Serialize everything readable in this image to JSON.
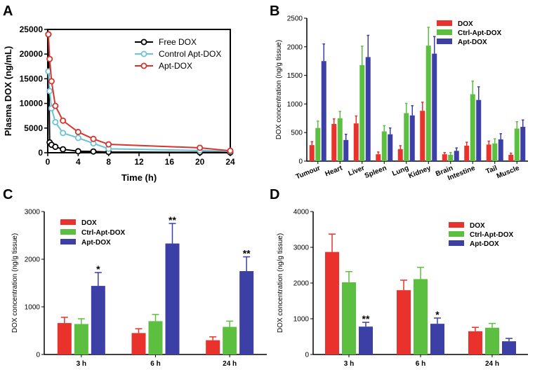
{
  "colors": {
    "DOX": "#e8322b",
    "Ctrl-Apt-DOX": "#5cbf3f",
    "Apt-DOX": "#3c3fa6",
    "Free DOX": "#000000",
    "Control Apt-DOX": "#6cc3d8",
    "Apt-DOX line": "#d9342b"
  },
  "chart_data": [
    {
      "panel": "A",
      "type": "line",
      "xlabel": "Time (h)",
      "ylabel": "Plasma DOX (ng/mL)",
      "xlim": [
        0,
        24
      ],
      "ylim": [
        0,
        25000
      ],
      "xticks": [
        "0",
        "4",
        "8",
        "12",
        "16",
        "20",
        "24"
      ],
      "yticks": [
        "0",
        "5000",
        "10000",
        "15000",
        "20000",
        "25000"
      ],
      "legend": [
        "Free DOX",
        "Control Apt-DOX",
        "Apt-DOX"
      ],
      "series": [
        {
          "name": "Free DOX",
          "color": "#000000",
          "x": [
            0.083,
            0.25,
            0.5,
            1,
            2,
            4,
            6,
            8,
            20,
            24
          ],
          "y": [
            24000,
            2100,
            1600,
            1200,
            700,
            300,
            250,
            150,
            80,
            60
          ]
        },
        {
          "name": "Control Apt-DOX",
          "color": "#6cc3d8",
          "x": [
            0.083,
            0.25,
            0.5,
            1,
            2,
            4,
            6,
            8,
            20,
            24
          ],
          "y": [
            16500,
            12500,
            9000,
            6200,
            4000,
            3000,
            1900,
            800,
            450,
            300
          ]
        },
        {
          "name": "Apt-DOX",
          "color": "#d9342b",
          "x": [
            0.083,
            0.25,
            0.5,
            1,
            2,
            4,
            6,
            8,
            20,
            24
          ],
          "y": [
            24000,
            19000,
            14500,
            9500,
            6500,
            4200,
            2800,
            1700,
            1000,
            400
          ]
        }
      ]
    },
    {
      "panel": "B",
      "type": "bar",
      "ylabel": "DOX concentration (ng/g tissue)",
      "ylim": [
        0,
        2500
      ],
      "yticks": [
        "0",
        "500",
        "1000",
        "1500",
        "2000",
        "2500"
      ],
      "categories": [
        "Tumour",
        "Heart",
        "Liver",
        "Spleen",
        "Lung",
        "Kidney",
        "Brain",
        "Intestine",
        "Tail",
        "Muscle"
      ],
      "legend": [
        "DOX",
        "Ctrl-Apt-DOX",
        "Apt-DOX"
      ],
      "series": [
        {
          "name": "DOX",
          "values": [
            280,
            650,
            660,
            120,
            210,
            880,
            120,
            270,
            290,
            110
          ],
          "errors": [
            60,
            90,
            130,
            40,
            60,
            150,
            30,
            60,
            60,
            30
          ]
        },
        {
          "name": "Ctrl-Apt-DOX",
          "values": [
            580,
            750,
            1680,
            520,
            840,
            2020,
            110,
            1170,
            310,
            570
          ],
          "errors": [
            120,
            120,
            330,
            100,
            170,
            320,
            40,
            230,
            80,
            120
          ]
        },
        {
          "name": "Apt-DOX",
          "values": [
            1750,
            370,
            1820,
            470,
            800,
            1880,
            180,
            1070,
            380,
            600
          ],
          "errors": [
            300,
            100,
            380,
            110,
            170,
            300,
            50,
            230,
            100,
            120
          ]
        }
      ]
    },
    {
      "panel": "C",
      "type": "bar",
      "ylabel": "DOX concentration (ng/g tissue)",
      "ylim": [
        0,
        3000
      ],
      "yticks": [
        "0",
        "1000",
        "2000",
        "3000"
      ],
      "categories": [
        "3 h",
        "6 h",
        "24 h"
      ],
      "legend": [
        "DOX",
        "Ctrl-Apt-DOX",
        "Apt-DOX"
      ],
      "series": [
        {
          "name": "DOX",
          "values": [
            660,
            450,
            300
          ],
          "errors": [
            120,
            90,
            70
          ]
        },
        {
          "name": "Ctrl-Apt-DOX",
          "values": [
            640,
            700,
            580
          ],
          "errors": [
            110,
            140,
            120
          ]
        },
        {
          "name": "Apt-DOX",
          "values": [
            1440,
            2330,
            1750
          ],
          "errors": [
            280,
            420,
            300
          ]
        }
      ],
      "annotations": [
        {
          "category": "3 h",
          "series": "Apt-DOX",
          "text": "*"
        },
        {
          "category": "6 h",
          "series": "Apt-DOX",
          "text": "**"
        },
        {
          "category": "24 h",
          "series": "Apt-DOX",
          "text": "**"
        }
      ]
    },
    {
      "panel": "D",
      "type": "bar",
      "ylabel": "DOX concentration (ng/g tissue)",
      "ylim": [
        0,
        4000
      ],
      "yticks": [
        "0",
        "1000",
        "2000",
        "3000",
        "4000"
      ],
      "categories": [
        "3 h",
        "6 h",
        "24 h"
      ],
      "legend": [
        "DOX",
        "Ctrl-Apt-DOX",
        "Apt-DOX"
      ],
      "series": [
        {
          "name": "DOX",
          "values": [
            2870,
            1800,
            650
          ],
          "errors": [
            500,
            280,
            110
          ]
        },
        {
          "name": "Ctrl-Apt-DOX",
          "values": [
            2020,
            2110,
            750
          ],
          "errors": [
            300,
            330,
            120
          ]
        },
        {
          "name": "Apt-DOX",
          "values": [
            780,
            860,
            370
          ],
          "errors": [
            120,
            160,
            80
          ]
        }
      ],
      "annotations": [
        {
          "category": "3 h",
          "series": "Apt-DOX",
          "text": "**"
        },
        {
          "category": "6 h",
          "series": "Apt-DOX",
          "text": "*"
        }
      ]
    }
  ],
  "panel_letters": [
    "A",
    "B",
    "C",
    "D"
  ]
}
